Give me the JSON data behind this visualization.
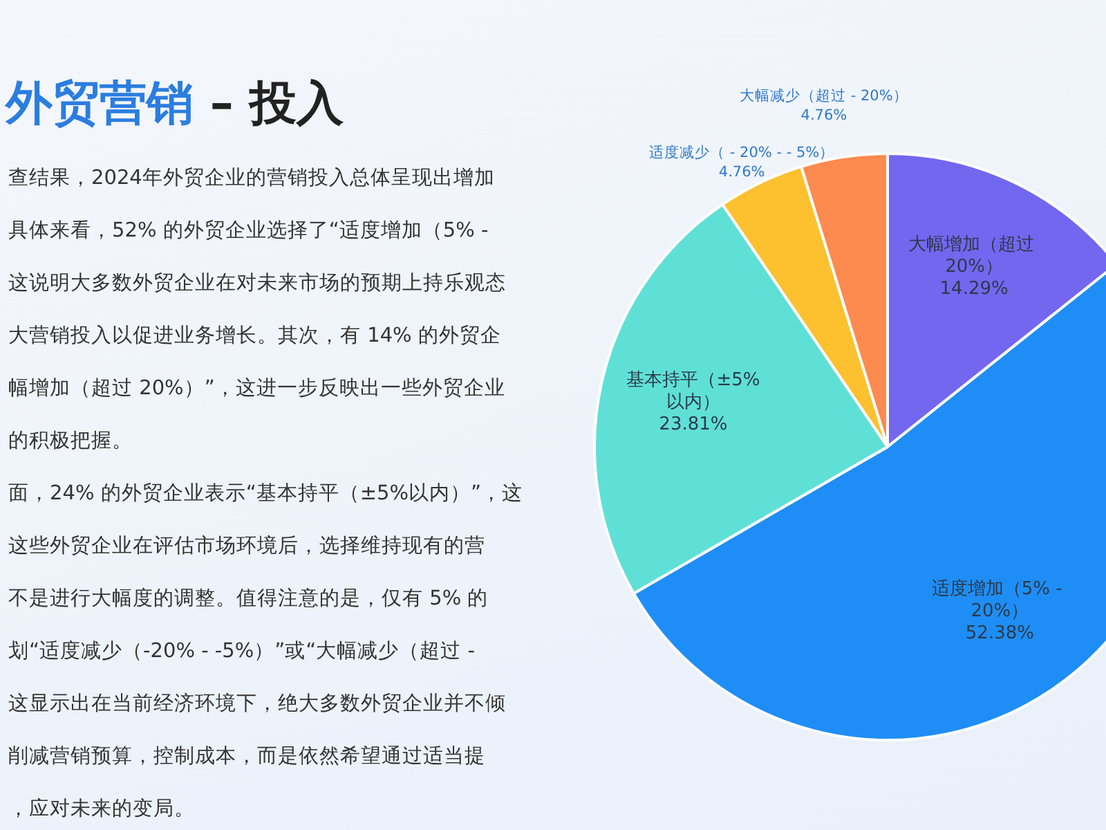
{
  "chart_data": {
    "type": "pie",
    "title": "外贸营销 – 投入",
    "categories": [
      "大幅增加（超过 20%）",
      "适度增加（5% - 20%）",
      "基本持平（±5%以内）",
      "适度减少（ - 20% - - 5%）",
      "大幅减少（超过 - 20%）"
    ],
    "values": [
      14.29,
      52.38,
      23.81,
      4.76,
      4.76
    ],
    "value_labels": [
      "14.29%",
      "52.38%",
      "23.81%",
      "4.76%",
      "4.76%"
    ],
    "colors": [
      "#7367f0",
      "#1e8ef6",
      "#5fe0d6",
      "#fdc02e",
      "#fd8a4e"
    ],
    "legend": false,
    "annotations": [
      "查结果，2024年外贸企业的营销投入总体呈现出增加",
      "具体来看，52% 的外贸企业选择了“适度增加（5% -",
      "这说明大多数外贸企业在对未来市场的预期上持乐观态",
      "大营销投入以促进业务增长。其次，有 14% 的外贸企",
      "幅增加（超过 20%）”，这进一步反映出一些外贸企业",
      "的积极把握。",
      "面，24% 的外贸企业表示“基本持平（±5%以内）”，这",
      "这些外贸企业在评估市场环境后，选择维持现有的营",
      "不是进行大幅度的调整。值得注意的是，仅有 5% 的",
      "划“适度减少（-20% - -5%）”或“大幅减少（超过 -",
      "这显示出在当前经济环境下，绝大多数外贸企业并不倾",
      "削减营销预算，控制成本，而是依然希望通过适当提",
      "，应对未来的变局。"
    ]
  }
}
